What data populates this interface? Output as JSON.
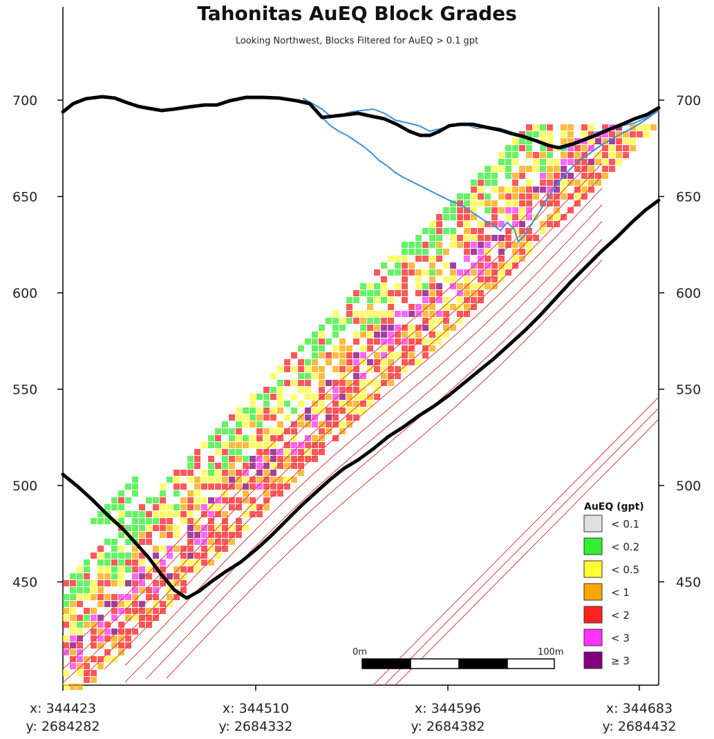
{
  "title": "Tahonitas AuEQ Block Grades",
  "subtitle": "Looking Northwest, Blocks Filtered for AuEQ > 0.1 gpt",
  "elevation_ticks": [
    "700",
    "650",
    "600",
    "550",
    "500",
    "450"
  ],
  "elevation_values": [
    700,
    650,
    600,
    550,
    500,
    450
  ],
  "coordinate_labels": [
    {
      "x": "x: 344423",
      "y": "y: 2684282"
    },
    {
      "x": "x: 344510",
      "y": "y: 2684332"
    },
    {
      "x": "x: 344596",
      "y": "y: 2684382"
    },
    {
      "x": "x: 344683",
      "y": "y: 2684432"
    }
  ],
  "legend": {
    "title": "AuEQ (gpt)",
    "items": [
      {
        "label": "< 0.1",
        "color": "#e0e0e0"
      },
      {
        "label": "< 0.2",
        "color": "#33ee33"
      },
      {
        "label": "< 0.5",
        "color": "#ffff33"
      },
      {
        "label": "< 1",
        "color": "#ffa500"
      },
      {
        "label": "< 2",
        "color": "#ff2020"
      },
      {
        "label": "< 3",
        "color": "#ff33ff"
      },
      {
        "label": "≥ 3",
        "color": "#800080"
      }
    ]
  },
  "scale_bar": {
    "start_label": "0m",
    "end_label": "100m"
  },
  "colors": {
    "topography": "#000000",
    "pit_outline": "#3a8fd8",
    "vein_wireframe": "#d83a3a"
  }
}
